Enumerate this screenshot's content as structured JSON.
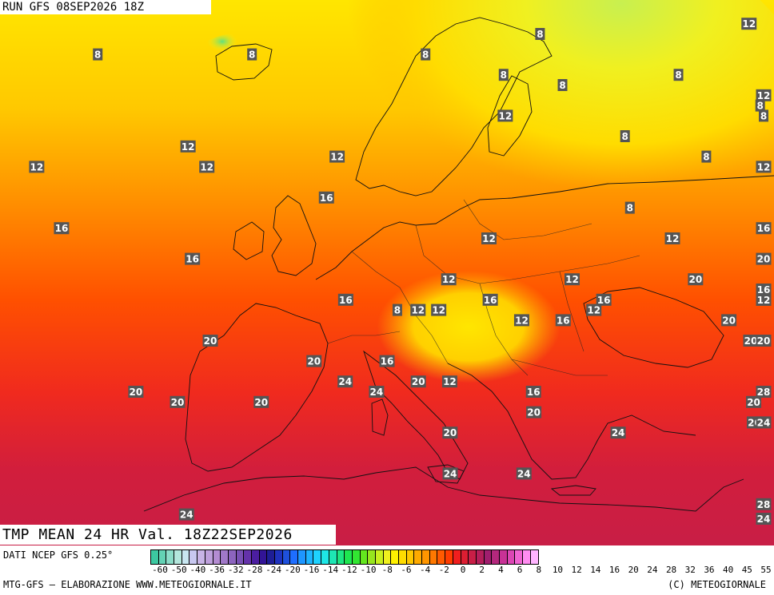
{
  "header": {
    "run": "RUN GFS 08SEP2026 18Z"
  },
  "map": {
    "title": "TMP MEAN 24 HR Val. 18Z22SEP2026",
    "labels": [
      {
        "text": "8",
        "lon": -20,
        "lat": 68
      },
      {
        "text": "8",
        "lon": -4,
        "lat": 68
      },
      {
        "text": "8",
        "lon": 14,
        "lat": 68
      },
      {
        "text": "8",
        "lon": 26,
        "lat": 70
      },
      {
        "text": "8",
        "lon": 22,
        "lat": 66
      },
      {
        "text": "8",
        "lon": 28,
        "lat": 65
      },
      {
        "text": "8",
        "lon": 40,
        "lat": 66
      },
      {
        "text": "8",
        "lon": 48,
        "lat": 63
      },
      {
        "text": "12",
        "lon": 22,
        "lat": 62
      },
      {
        "text": "8",
        "lon": 34,
        "lat": 60
      },
      {
        "text": "8",
        "lon": 42,
        "lat": 58
      },
      {
        "text": "12",
        "lon": 50,
        "lat": 57
      },
      {
        "text": "8",
        "lon": 52,
        "lat": 62
      },
      {
        "text": "12",
        "lon": 54,
        "lat": 64
      },
      {
        "text": "12",
        "lon": 48,
        "lat": 71
      },
      {
        "text": "12",
        "lon": -10,
        "lat": 59
      },
      {
        "text": "12",
        "lon": -25,
        "lat": 57
      },
      {
        "text": "12",
        "lon": -8,
        "lat": 57
      },
      {
        "text": "12",
        "lon": 5,
        "lat": 58
      },
      {
        "text": "16",
        "lon": -22,
        "lat": 51
      },
      {
        "text": "16",
        "lon": 4,
        "lat": 54
      },
      {
        "text": "16",
        "lon": -9,
        "lat": 48
      },
      {
        "text": "8",
        "lon": 34,
        "lat": 53
      },
      {
        "text": "12",
        "lon": 20,
        "lat": 50
      },
      {
        "text": "12",
        "lon": 38,
        "lat": 50
      },
      {
        "text": "16",
        "lon": 50,
        "lat": 51
      },
      {
        "text": "20",
        "lon": 57,
        "lat": 48
      },
      {
        "text": "20",
        "lon": 40,
        "lat": 46
      },
      {
        "text": "12",
        "lon": 16,
        "lat": 46
      },
      {
        "text": "12",
        "lon": 28,
        "lat": 46
      },
      {
        "text": "16",
        "lon": 6,
        "lat": 44
      },
      {
        "text": "12",
        "lon": 13,
        "lat": 43
      },
      {
        "text": "16",
        "lon": 20,
        "lat": 44
      },
      {
        "text": "16",
        "lon": 31,
        "lat": 44
      },
      {
        "text": "8",
        "lon": 11,
        "lat": 43
      },
      {
        "text": "12",
        "lon": 15,
        "lat": 43
      },
      {
        "text": "12",
        "lon": 23,
        "lat": 42
      },
      {
        "text": "12",
        "lon": 30,
        "lat": 43
      },
      {
        "text": "16",
        "lon": 27,
        "lat": 42
      },
      {
        "text": "20",
        "lon": 43,
        "lat": 42
      },
      {
        "text": "20",
        "lon": 45,
        "lat": 40
      },
      {
        "text": "20",
        "lon": -7,
        "lat": 40
      },
      {
        "text": "20",
        "lon": 3,
        "lat": 38
      },
      {
        "text": "16",
        "lon": 10,
        "lat": 38
      },
      {
        "text": "20",
        "lon": 13,
        "lat": 36
      },
      {
        "text": "12",
        "lon": 16,
        "lat": 36
      },
      {
        "text": "24",
        "lon": 6,
        "lat": 36
      },
      {
        "text": "24",
        "lon": 9,
        "lat": 35
      },
      {
        "text": "20",
        "lon": -14,
        "lat": 35
      },
      {
        "text": "20",
        "lon": -10,
        "lat": 34
      },
      {
        "text": "20",
        "lon": -2,
        "lat": 34
      },
      {
        "text": "16",
        "lon": 24,
        "lat": 35
      },
      {
        "text": "20",
        "lon": 24,
        "lat": 33
      },
      {
        "text": "20",
        "lon": 16,
        "lat": 31
      },
      {
        "text": "24",
        "lon": 32,
        "lat": 31
      },
      {
        "text": "20",
        "lon": 45,
        "lat": 34
      },
      {
        "text": "20",
        "lon": 45,
        "lat": 32
      },
      {
        "text": "24",
        "lon": 46,
        "lat": 32
      },
      {
        "text": "28",
        "lon": 52,
        "lat": 35
      },
      {
        "text": "24",
        "lon": 16,
        "lat": 27
      },
      {
        "text": "24",
        "lon": 23,
        "lat": 27
      },
      {
        "text": "24",
        "lon": -9,
        "lat": 23
      },
      {
        "text": "28",
        "lon": 53,
        "lat": 24
      },
      {
        "text": "24",
        "lon": 52,
        "lat": 21
      },
      {
        "text": "12",
        "lon": 48,
        "lat": 45
      },
      {
        "text": "16",
        "lon": 50,
        "lat": 44
      },
      {
        "text": "12",
        "lon": 52,
        "lat": 44
      },
      {
        "text": "20",
        "lon": 54,
        "lat": 45
      },
      {
        "text": "16",
        "lon": 57,
        "lat": 45
      },
      {
        "text": "16",
        "lon": 50,
        "lat": 40
      },
      {
        "text": "20",
        "lon": 51,
        "lat": 40
      }
    ]
  },
  "legend": {
    "dati": "DATI NCEP GFS 0.25°",
    "credit_left": "MTG-GFS – ELABORAZIONE WWW.METEOGIORNALE.IT",
    "credit_right": "(C) METEOGIORNALE",
    "ticks": [
      "-60",
      "-50",
      "-40",
      "-36",
      "-32",
      "-28",
      "-24",
      "-20",
      "-16",
      "-14",
      "-12",
      "-10",
      "-8",
      "-6",
      "-4",
      "-2",
      "0",
      "2",
      "4",
      "6",
      "8",
      "10",
      "12",
      "14",
      "16",
      "20",
      "24",
      "28",
      "32",
      "36",
      "40",
      "45",
      "55"
    ],
    "swatches": [
      "#3cc8a0",
      "#64d2b4",
      "#8cdcc8",
      "#b4e6dc",
      "#c8e6f0",
      "#c8c8f0",
      "#c8b4e6",
      "#bea0dc",
      "#b48cd2",
      "#a078c8",
      "#8c64be",
      "#7850b4",
      "#6432aa",
      "#4b1ea0",
      "#321496",
      "#1e1e96",
      "#1e32be",
      "#1e50dc",
      "#1e6eff",
      "#1e96ff",
      "#1eb4ff",
      "#1ed2ff",
      "#1ee6e6",
      "#1ee6b4",
      "#1ee682",
      "#1ee650",
      "#32e632",
      "#64e61e",
      "#96e61e",
      "#c8f01e",
      "#f0f01e",
      "#fff000",
      "#ffdc00",
      "#ffc800",
      "#ffaa00",
      "#ff9600",
      "#ff7800",
      "#ff5a00",
      "#ff3c00",
      "#f01e1e",
      "#dc1e32",
      "#c81e46",
      "#b41e5a",
      "#a01e6e",
      "#b4287d",
      "#c83296",
      "#dc46b4",
      "#f064d2",
      "#ff8cf0",
      "#ffb4ff"
    ]
  }
}
